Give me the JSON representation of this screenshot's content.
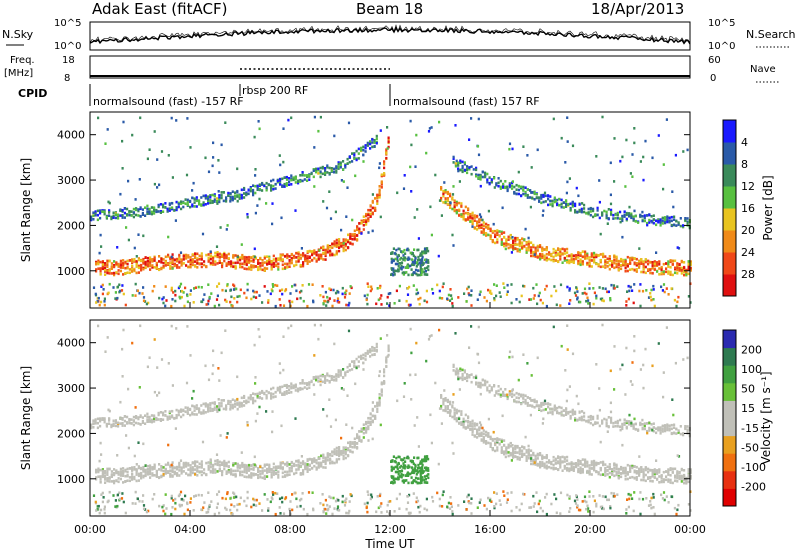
{
  "header": {
    "title": "Adak East (fitACF)",
    "beam": "Beam 18",
    "date": "18/Apr/2013"
  },
  "top_panels": {
    "nsky_label": "N.Sky",
    "nsearch_label": "N.Search",
    "noise_ticks": [
      "10^5",
      "10^0"
    ],
    "freq_label_1": "Freq.",
    "freq_label_2": "[MHz]",
    "freq_ticks": [
      "18",
      "8"
    ],
    "nave_label": "Nave",
    "nave_ticks": [
      "60",
      "0"
    ],
    "cpid_label": "CPID",
    "cpid_segments": [
      {
        "label": "normalsound (fast) -157 RF",
        "start_hour": 0,
        "end_hour": 6
      },
      {
        "label": "rbsp 200 RF",
        "start_hour": 6,
        "end_hour": 12
      },
      {
        "label": "normalsound (fast) 157 RF",
        "start_hour": 12,
        "end_hour": 24
      }
    ]
  },
  "chart_data": [
    {
      "type": "heatmap",
      "parameter": "power",
      "ylabel": "Slant Range [km]",
      "ylim": [
        180,
        4500
      ],
      "yticks": [
        1000,
        2000,
        3000,
        4000
      ],
      "xlim_hours": [
        0,
        24
      ],
      "colorbar": {
        "label": "Power [dB]",
        "range": [
          0,
          32
        ],
        "ticks": [
          "4",
          "8",
          "12",
          "16",
          "20",
          "24",
          "28"
        ],
        "colors": [
          "#1a1aff",
          "#2a5aa8",
          "#3a8a5a",
          "#58c040",
          "#e8c420",
          "#f08a18",
          "#f04818",
          "#e01010"
        ]
      },
      "features": [
        {
          "name": "main_band",
          "start_hour": 0.2,
          "end_hour": 11.9,
          "range_profile_km": [
            [
              0,
              1100
            ],
            [
              1,
              1050
            ],
            [
              3,
              1200
            ],
            [
              5,
              1250
            ],
            [
              7,
              1150
            ],
            [
              9,
              1300
            ],
            [
              10.5,
              1700
            ],
            [
              11.5,
              2600
            ],
            [
              11.9,
              3800
            ]
          ],
          "power_db": 26
        },
        {
          "name": "upper_band",
          "start_hour": 0.0,
          "end_hour": 11.5,
          "range_profile_km": [
            [
              0,
              2200
            ],
            [
              2,
              2300
            ],
            [
              4,
              2500
            ],
            [
              6,
              2700
            ],
            [
              8,
              3000
            ],
            [
              10,
              3300
            ],
            [
              11.5,
              3900
            ]
          ],
          "power_db": 10
        },
        {
          "name": "evening_band",
          "start_hour": 14.0,
          "end_hour": 24.0,
          "range_profile_km": [
            [
              14,
              2700
            ],
            [
              16,
              1800
            ],
            [
              18,
              1400
            ],
            [
              20,
              1250
            ],
            [
              22,
              1100
            ],
            [
              24,
              1050
            ]
          ],
          "power_db": 24
        },
        {
          "name": "evening_upper",
          "start_hour": 14.5,
          "end_hour": 24.0,
          "range_profile_km": [
            [
              14.5,
              3400
            ],
            [
              16,
              3000
            ],
            [
              18,
              2600
            ],
            [
              20,
              2300
            ],
            [
              22,
              2150
            ],
            [
              24,
              2050
            ]
          ],
          "power_db": 10
        }
      ]
    },
    {
      "type": "heatmap",
      "parameter": "velocity",
      "ylabel": "Slant Range [km]",
      "ylim": [
        180,
        4500
      ],
      "yticks": [
        1000,
        2000,
        3000,
        4000
      ],
      "xlim_hours": [
        0,
        24
      ],
      "xticks": [
        "00:00",
        "04:00",
        "08:00",
        "12:00",
        "16:00",
        "20:00",
        "00:00"
      ],
      "xlabel": "Time UT",
      "colorbar": {
        "label": "Velocity [m s⁻¹]",
        "range": [
          -250,
          250
        ],
        "ticks": [
          "200",
          "100",
          "50",
          "15",
          "-15",
          "-50",
          "-100",
          "-200"
        ],
        "colors": [
          "#2a2ab0",
          "#2e7a50",
          "#40a040",
          "#68c038",
          "#c0c0b8",
          "#c0c0b8",
          "#e8a020",
          "#f07010",
          "#e83010",
          "#e00000"
        ]
      },
      "dominant_velocity_m_s": 0,
      "features": [
        {
          "name": "ground_scatter_main",
          "start_hour": 0.2,
          "end_hour": 11.9,
          "velocity_m_s": 0
        },
        {
          "name": "ground_scatter_evening",
          "start_hour": 14.0,
          "end_hour": 24.0,
          "velocity_m_s": 0
        },
        {
          "name": "green_patch",
          "start_hour": 12.0,
          "end_hour": 13.5,
          "range_km": [
            900,
            1500
          ],
          "velocity_m_s": 60
        }
      ]
    }
  ]
}
